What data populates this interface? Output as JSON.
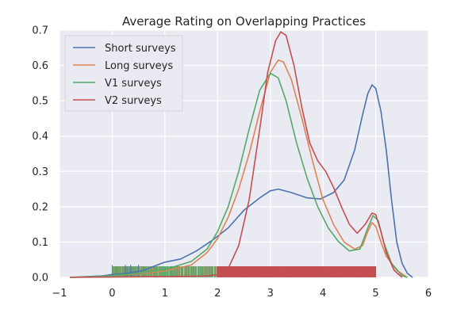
{
  "chart_data": {
    "type": "line",
    "title": "Average Rating on Overlapping Practices",
    "xlabel": "",
    "ylabel": "",
    "xlim": [
      -1,
      6
    ],
    "ylim": [
      0,
      0.7
    ],
    "x_ticks": [
      -1,
      0,
      1,
      2,
      3,
      4,
      5,
      6
    ],
    "y_ticks": [
      0.0,
      0.1,
      0.2,
      0.3,
      0.4,
      0.5,
      0.6,
      0.7
    ],
    "grid": true,
    "legend_position": "top-left",
    "series": [
      {
        "name": "Short surveys",
        "color": "#4c72b0",
        "points": [
          [
            -0.8,
            0.0
          ],
          [
            -0.5,
            0.002
          ],
          [
            -0.2,
            0.004
          ],
          [
            0,
            0.008
          ],
          [
            0.3,
            0.012
          ],
          [
            0.6,
            0.02
          ],
          [
            0.8,
            0.032
          ],
          [
            1.0,
            0.043
          ],
          [
            1.3,
            0.052
          ],
          [
            1.6,
            0.075
          ],
          [
            1.9,
            0.105
          ],
          [
            2.2,
            0.14
          ],
          [
            2.5,
            0.19
          ],
          [
            2.8,
            0.225
          ],
          [
            3.0,
            0.245
          ],
          [
            3.15,
            0.25
          ],
          [
            3.4,
            0.24
          ],
          [
            3.7,
            0.225
          ],
          [
            3.95,
            0.222
          ],
          [
            4.2,
            0.24
          ],
          [
            4.4,
            0.275
          ],
          [
            4.6,
            0.36
          ],
          [
            4.75,
            0.46
          ],
          [
            4.85,
            0.52
          ],
          [
            4.93,
            0.545
          ],
          [
            5.0,
            0.535
          ],
          [
            5.1,
            0.47
          ],
          [
            5.2,
            0.36
          ],
          [
            5.3,
            0.22
          ],
          [
            5.4,
            0.1
          ],
          [
            5.5,
            0.04
          ],
          [
            5.6,
            0.012
          ],
          [
            5.7,
            0.0
          ]
        ]
      },
      {
        "name": "Long surveys",
        "color": "#dd8452",
        "points": [
          [
            -0.8,
            0.0
          ],
          [
            -0.3,
            0.002
          ],
          [
            0,
            0.005
          ],
          [
            0.5,
            0.01
          ],
          [
            1.0,
            0.018
          ],
          [
            1.5,
            0.035
          ],
          [
            1.8,
            0.07
          ],
          [
            2.0,
            0.11
          ],
          [
            2.2,
            0.17
          ],
          [
            2.4,
            0.25
          ],
          [
            2.6,
            0.35
          ],
          [
            2.8,
            0.47
          ],
          [
            3.0,
            0.58
          ],
          [
            3.15,
            0.615
          ],
          [
            3.25,
            0.61
          ],
          [
            3.4,
            0.56
          ],
          [
            3.6,
            0.45
          ],
          [
            3.8,
            0.33
          ],
          [
            4.0,
            0.22
          ],
          [
            4.2,
            0.15
          ],
          [
            4.4,
            0.1
          ],
          [
            4.6,
            0.08
          ],
          [
            4.75,
            0.09
          ],
          [
            4.85,
            0.13
          ],
          [
            4.93,
            0.155
          ],
          [
            5.0,
            0.145
          ],
          [
            5.1,
            0.1
          ],
          [
            5.2,
            0.06
          ],
          [
            5.4,
            0.02
          ],
          [
            5.6,
            0.0
          ]
        ]
      },
      {
        "name": "V1 surveys",
        "color": "#55a868",
        "points": [
          [
            -0.8,
            0.0
          ],
          [
            -0.3,
            0.002
          ],
          [
            0,
            0.005
          ],
          [
            0.5,
            0.012
          ],
          [
            1.0,
            0.022
          ],
          [
            1.5,
            0.045
          ],
          [
            1.8,
            0.08
          ],
          [
            2.0,
            0.13
          ],
          [
            2.2,
            0.2
          ],
          [
            2.4,
            0.3
          ],
          [
            2.6,
            0.42
          ],
          [
            2.8,
            0.53
          ],
          [
            3.0,
            0.578
          ],
          [
            3.15,
            0.565
          ],
          [
            3.3,
            0.5
          ],
          [
            3.5,
            0.38
          ],
          [
            3.7,
            0.28
          ],
          [
            3.9,
            0.2
          ],
          [
            4.1,
            0.14
          ],
          [
            4.3,
            0.1
          ],
          [
            4.5,
            0.075
          ],
          [
            4.7,
            0.08
          ],
          [
            4.85,
            0.14
          ],
          [
            4.95,
            0.175
          ],
          [
            5.05,
            0.16
          ],
          [
            5.15,
            0.1
          ],
          [
            5.3,
            0.04
          ],
          [
            5.5,
            0.005
          ],
          [
            5.6,
            0.0
          ]
        ]
      },
      {
        "name": "V2 surveys",
        "color": "#c44e52",
        "points": [
          [
            -0.8,
            0.0
          ],
          [
            0,
            0.001
          ],
          [
            1.0,
            0.002
          ],
          [
            1.8,
            0.004
          ],
          [
            2.0,
            0.008
          ],
          [
            2.2,
            0.025
          ],
          [
            2.4,
            0.09
          ],
          [
            2.6,
            0.22
          ],
          [
            2.8,
            0.42
          ],
          [
            2.95,
            0.58
          ],
          [
            3.1,
            0.67
          ],
          [
            3.2,
            0.695
          ],
          [
            3.3,
            0.685
          ],
          [
            3.45,
            0.6
          ],
          [
            3.6,
            0.48
          ],
          [
            3.75,
            0.38
          ],
          [
            3.9,
            0.33
          ],
          [
            4.05,
            0.3
          ],
          [
            4.2,
            0.255
          ],
          [
            4.35,
            0.2
          ],
          [
            4.5,
            0.15
          ],
          [
            4.65,
            0.125
          ],
          [
            4.8,
            0.15
          ],
          [
            4.93,
            0.182
          ],
          [
            5.0,
            0.178
          ],
          [
            5.1,
            0.13
          ],
          [
            5.2,
            0.07
          ],
          [
            5.35,
            0.02
          ],
          [
            5.5,
            0.0
          ]
        ]
      }
    ]
  }
}
